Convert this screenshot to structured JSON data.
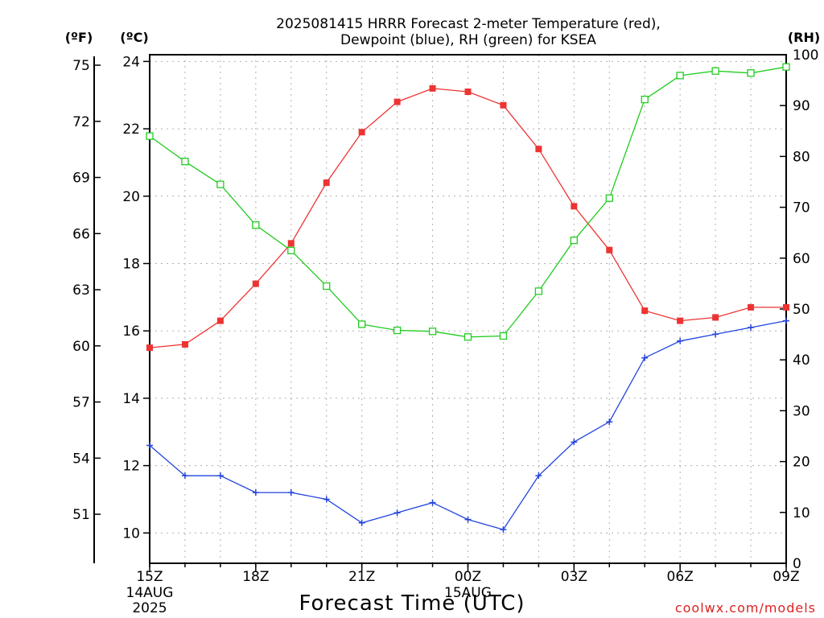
{
  "chart_data": {
    "type": "line",
    "title_lines": [
      "2025081415 HRRR Forecast 2-meter Temperature (red),",
      "Dewpoint (blue), RH (green) for KSEA"
    ],
    "xlabel": "Forecast Time (UTC)",
    "credit": "coolwx.com/models",
    "unit_labels": {
      "fahrenheit": "(ºF)",
      "celsius": "(ºC)",
      "rh": "(RH)"
    },
    "x_hours": [
      0,
      1,
      2,
      3,
      4,
      5,
      6,
      7,
      8,
      9,
      10,
      11,
      12,
      13,
      14,
      15,
      16,
      17,
      18
    ],
    "x_ticks": [
      {
        "hour": 0,
        "label": "15Z",
        "date1": "14AUG",
        "date2": "2025"
      },
      {
        "hour": 3,
        "label": "18Z"
      },
      {
        "hour": 6,
        "label": "21Z"
      },
      {
        "hour": 9,
        "label": "00Z",
        "date1": "15AUG"
      },
      {
        "hour": 12,
        "label": "03Z"
      },
      {
        "hour": 15,
        "label": "06Z"
      },
      {
        "hour": 18,
        "label": "09Z"
      }
    ],
    "ylim_celsius": [
      9.1,
      24.2
    ],
    "y_ticks_celsius": [
      "10",
      "12",
      "14",
      "16",
      "18",
      "20",
      "22",
      "24"
    ],
    "y_ticks_fahrenheit": [
      "51",
      "54",
      "57",
      "60",
      "63",
      "66",
      "69",
      "72",
      "75"
    ],
    "ylim_rh": [
      0,
      100
    ],
    "y_ticks_rh": [
      "0",
      "10",
      "20",
      "30",
      "40",
      "50",
      "60",
      "70",
      "80",
      "90",
      "100"
    ],
    "grid": true,
    "series": [
      {
        "name": "Temperature",
        "axis": "celsius",
        "color": "#ee3333",
        "marker": "filled-square",
        "values": [
          15.5,
          15.6,
          16.3,
          17.4,
          18.6,
          20.4,
          21.9,
          22.8,
          23.2,
          23.1,
          22.7,
          21.4,
          19.7,
          18.4,
          16.6,
          16.3,
          16.4,
          16.7,
          16.7
        ]
      },
      {
        "name": "Dewpoint",
        "axis": "celsius",
        "color": "#2244dd",
        "marker": "plus",
        "values": [
          12.6,
          11.7,
          11.7,
          11.2,
          11.2,
          11.0,
          10.3,
          10.6,
          10.9,
          10.4,
          10.1,
          11.7,
          12.7,
          13.3,
          15.2,
          15.7,
          15.9,
          16.1,
          16.3
        ]
      },
      {
        "name": "RH",
        "axis": "rh",
        "color": "#22cc22",
        "marker": "open-square",
        "values": [
          84,
          79,
          74.5,
          66.5,
          61.5,
          54.5,
          47,
          45.8,
          45.6,
          44.5,
          44.7,
          53.5,
          63.5,
          71.8,
          91.2,
          95.9,
          96.8,
          96.4,
          97.6
        ]
      }
    ]
  }
}
